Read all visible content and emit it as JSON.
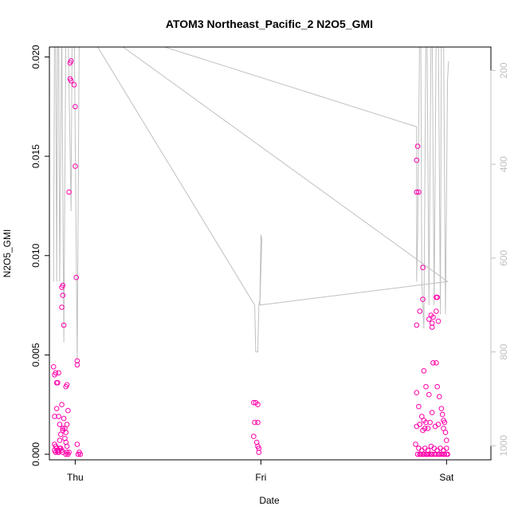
{
  "chart_data": {
    "type": "scatter",
    "title": "ATOM3 Northeast_Pacific_2 N2O5_GMI",
    "xlabel": "Date",
    "ylabel": "N2O5_GMI",
    "x_ticks": [
      "Thu",
      "Fri",
      "Sat"
    ],
    "y_ticks": [
      "0.000",
      "0.005",
      "0.010",
      "0.015",
      "0.020"
    ],
    "ylim": [
      0,
      0.0205
    ],
    "right_axis": {
      "ticks": [
        "200",
        "400",
        "600",
        "800",
        "1000"
      ],
      "range": [
        1030,
        150
      ],
      "color": "#c0c0c0"
    },
    "colors": {
      "points": "#ff00aa",
      "pressure": "#c0c0c0"
    },
    "series": [
      {
        "type": "scatter",
        "points": [
          [
            0.04,
            0.0044
          ],
          [
            0.05,
            0.004
          ],
          [
            0.06,
            0.0041
          ],
          [
            0.07,
            0.0036
          ],
          [
            0.08,
            0.0036
          ],
          [
            0.09,
            0.0041
          ],
          [
            0.05,
            0.0019
          ],
          [
            0.07,
            0.0023
          ],
          [
            0.09,
            0.0019
          ],
          [
            0.1,
            0.0015
          ],
          [
            0.12,
            0.0025
          ],
          [
            0.13,
            0.0013
          ],
          [
            0.14,
            0.0018
          ],
          [
            0.16,
            0.0034
          ],
          [
            0.17,
            0.0035
          ],
          [
            0.18,
            0.0022
          ],
          [
            0.17,
            0.0015
          ],
          [
            0.15,
            0.0013
          ],
          [
            0.16,
            0.0011
          ],
          [
            0.05,
            0.0005
          ],
          [
            0.06,
            0.0004
          ],
          [
            0.07,
            0.0003
          ],
          [
            0.08,
            0.0002
          ],
          [
            0.09,
            0.0002
          ],
          [
            0.1,
            0.0003
          ],
          [
            0.11,
            0.0003
          ],
          [
            0.12,
            0.0002
          ],
          [
            0.13,
            0.0001
          ],
          [
            0.05,
            0.0002
          ],
          [
            0.06,
            0.0001
          ],
          [
            0.08,
            0.0001
          ],
          [
            0.09,
            0.0001
          ],
          [
            0.1,
            0.0007
          ],
          [
            0.11,
            0.001
          ],
          [
            0.13,
            0.0012
          ],
          [
            0.15,
            0.0008
          ],
          [
            0.16,
            0.0006
          ],
          [
            0.17,
            0.0004
          ],
          [
            0.16,
            0.0
          ],
          [
            0.17,
            0.0001
          ],
          [
            0.18,
            0.0
          ],
          [
            0.19,
            0.0001
          ],
          [
            0.28,
            0.0
          ],
          [
            0.29,
            0.0001
          ],
          [
            0.3,
            0.0
          ],
          [
            0.12,
            0.0084
          ],
          [
            0.13,
            0.008
          ],
          [
            0.13,
            0.0085
          ],
          [
            0.12,
            0.0074
          ],
          [
            0.14,
            0.0065
          ],
          [
            0.2,
            0.0197
          ],
          [
            0.21,
            0.0198
          ],
          [
            0.2,
            0.0189
          ],
          [
            0.21,
            0.0188
          ],
          [
            0.24,
            0.0186
          ],
          [
            0.25,
            0.0175
          ],
          [
            0.25,
            0.0145
          ],
          [
            0.19,
            0.0132
          ],
          [
            0.26,
            0.0089
          ],
          [
            0.27,
            0.0047
          ],
          [
            0.27,
            0.0045
          ],
          [
            0.27,
            0.0005
          ],
          [
            1.98,
            0.0026
          ],
          [
            2.0,
            0.0026
          ],
          [
            2.02,
            0.0025
          ],
          [
            1.99,
            0.0016
          ],
          [
            2.02,
            0.0016
          ],
          [
            1.98,
            0.0009
          ],
          [
            2.01,
            0.0006
          ],
          [
            2.02,
            0.0004
          ],
          [
            2.03,
            0.0003
          ],
          [
            2.03,
            0.0001
          ],
          [
            3.57,
            0.0155
          ],
          [
            3.56,
            0.0148
          ],
          [
            3.56,
            0.0132
          ],
          [
            3.58,
            0.0132
          ],
          [
            3.62,
            0.0094
          ],
          [
            3.59,
            0.0072
          ],
          [
            3.56,
            0.0065
          ],
          [
            3.62,
            0.0078
          ],
          [
            3.68,
            0.0068
          ],
          [
            3.7,
            0.007
          ],
          [
            3.72,
            0.0069
          ],
          [
            3.71,
            0.0066
          ],
          [
            3.71,
            0.0064
          ],
          [
            3.75,
            0.0079
          ],
          [
            3.76,
            0.0079
          ],
          [
            3.75,
            0.0072
          ],
          [
            3.77,
            0.0067
          ],
          [
            3.72,
            0.0046
          ],
          [
            3.75,
            0.0046
          ],
          [
            3.63,
            0.0042
          ],
          [
            3.65,
            0.0034
          ],
          [
            3.68,
            0.003
          ],
          [
            3.76,
            0.0034
          ],
          [
            3.78,
            0.0029
          ],
          [
            3.56,
            0.0031
          ],
          [
            3.58,
            0.0024
          ],
          [
            3.61,
            0.0019
          ],
          [
            3.63,
            0.0017
          ],
          [
            3.65,
            0.0016
          ],
          [
            3.64,
            0.0013
          ],
          [
            3.62,
            0.0012
          ],
          [
            3.59,
            0.0015
          ],
          [
            3.56,
            0.0014
          ],
          [
            3.67,
            0.0013
          ],
          [
            3.69,
            0.0016
          ],
          [
            3.71,
            0.0021
          ],
          [
            3.74,
            0.0014
          ],
          [
            3.77,
            0.0015
          ],
          [
            3.8,
            0.0023
          ],
          [
            3.81,
            0.002
          ],
          [
            3.82,
            0.0017
          ],
          [
            3.83,
            0.0016
          ],
          [
            3.82,
            0.0013
          ],
          [
            3.84,
            0.0011
          ],
          [
            3.85,
            0.0007
          ],
          [
            3.55,
            0.0005
          ],
          [
            3.58,
            0.0003
          ],
          [
            3.61,
            0.0002
          ],
          [
            3.64,
            0.0003
          ],
          [
            3.67,
            0.0002
          ],
          [
            3.7,
            0.0004
          ],
          [
            3.73,
            0.0003
          ],
          [
            3.76,
            0.0002
          ],
          [
            3.79,
            0.0003
          ],
          [
            3.82,
            0.0002
          ],
          [
            3.85,
            0.0003
          ],
          [
            3.57,
            0.0
          ],
          [
            3.59,
            0.0
          ],
          [
            3.6,
            0.0
          ],
          [
            3.62,
            0.0
          ],
          [
            3.63,
            0.0
          ],
          [
            3.65,
            0.0
          ],
          [
            3.66,
            0.0
          ],
          [
            3.68,
            0.0
          ],
          [
            3.7,
            0.0
          ],
          [
            3.71,
            0.0
          ],
          [
            3.73,
            0.0
          ],
          [
            3.75,
            0.0
          ],
          [
            3.77,
            0.0
          ],
          [
            3.78,
            0.0
          ],
          [
            3.8,
            0.0
          ],
          [
            3.82,
            0.0
          ],
          [
            3.83,
            0.0
          ],
          [
            3.85,
            0.0
          ],
          [
            3.86,
            0.0
          ]
        ]
      },
      {
        "type": "line",
        "axis": "right",
        "points": [
          [
            0.04,
            650
          ],
          [
            0.05,
            100
          ],
          [
            0.06,
            100
          ],
          [
            0.07,
            650
          ],
          [
            0.08,
            100
          ],
          [
            0.09,
            100
          ],
          [
            0.1,
            650
          ],
          [
            0.12,
            100
          ],
          [
            0.14,
            780
          ],
          [
            0.16,
            100
          ],
          [
            0.18,
            100
          ],
          [
            0.21,
            500
          ],
          [
            0.22,
            100
          ],
          [
            0.24,
            100
          ],
          [
            0.27,
            820
          ],
          [
            0.29,
            100
          ],
          [
            0.3,
            100
          ],
          [
            0.33,
            100
          ],
          [
            1.99,
            700
          ],
          [
            2.0,
            800
          ],
          [
            2.02,
            800
          ],
          [
            2.03,
            700
          ],
          [
            2.04,
            690
          ],
          [
            2.05,
            550
          ],
          [
            2.06,
            560
          ],
          [
            2.04,
            700
          ],
          [
            3.86,
            650
          ],
          [
            0.4,
            100
          ],
          [
            3.56,
            320
          ],
          [
            3.56,
            650
          ],
          [
            3.57,
            550
          ],
          [
            3.59,
            100
          ],
          [
            3.6,
            100
          ],
          [
            3.61,
            650
          ],
          [
            3.63,
            750
          ],
          [
            3.65,
            100
          ],
          [
            3.66,
            100
          ],
          [
            3.68,
            700
          ],
          [
            3.7,
            100
          ],
          [
            3.71,
            100
          ],
          [
            3.73,
            700
          ],
          [
            3.75,
            100
          ],
          [
            3.77,
            100
          ],
          [
            3.79,
            720
          ],
          [
            3.8,
            100
          ],
          [
            3.82,
            100
          ],
          [
            3.84,
            720
          ],
          [
            3.86,
            220
          ],
          [
            3.87,
            180
          ]
        ]
      }
    ]
  }
}
